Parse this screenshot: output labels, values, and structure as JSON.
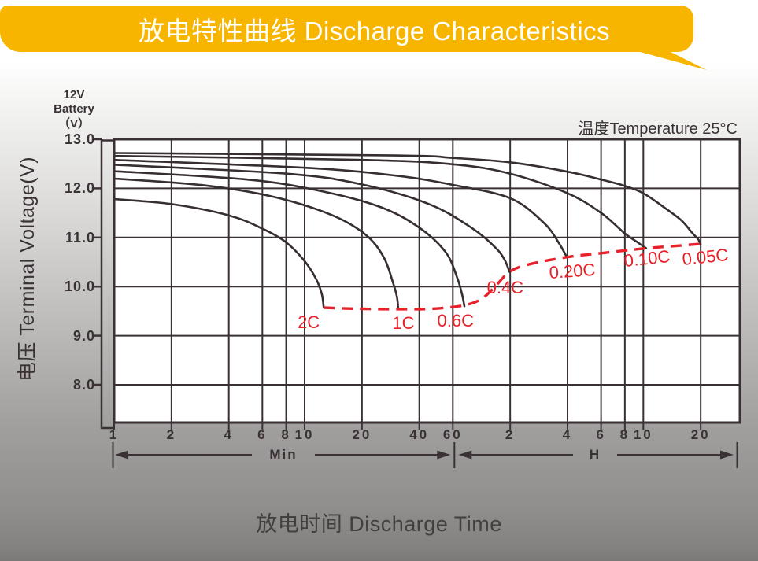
{
  "banner": {
    "title": "放电特性曲线 Discharge Characteristics"
  },
  "battery_label": {
    "line1": "12V",
    "line2": "Battery",
    "line3": "（V）"
  },
  "temperature_note": "温度Temperature 25°C",
  "colors": {
    "ink": "#3a3134",
    "curve": "#362e31",
    "red": "#e8202a",
    "yellow": "#f8b500",
    "banner_text": "#ffffff",
    "plot_bg": "#ffffff"
  },
  "chart_data": {
    "type": "line",
    "title": "放电特性曲线 Discharge Characteristics",
    "xlabel": "放电时间 Discharge Time",
    "ylabel": "电压 Terminal Voltage(V)",
    "x_scale": "log",
    "x_range_minutes": [
      1,
      1930
    ],
    "ylim": [
      8,
      13
    ],
    "grid": true,
    "y_ticks": [
      "13.0",
      "12.0",
      "11.0",
      "10.0",
      "9.0",
      "8.0"
    ],
    "x_unit_sections": [
      {
        "label": "Min",
        "unit_minutes": 1,
        "ticks": [
          1,
          2,
          4,
          6,
          8,
          10,
          20,
          40,
          60
        ]
      },
      {
        "label": "H",
        "unit_minutes": 60,
        "ticks": [
          2,
          4,
          6,
          8,
          10,
          20
        ]
      }
    ],
    "series": [
      {
        "label": "2C",
        "start_voltage": 11.78,
        "end_time_min": 12.6,
        "end_voltage": 9.57,
        "points": [
          [
            1,
            11.78
          ],
          [
            2,
            11.68
          ],
          [
            4,
            11.45
          ],
          [
            6,
            11.18
          ],
          [
            8,
            10.9
          ],
          [
            10,
            10.52
          ],
          [
            11.5,
            10.15
          ],
          [
            12.3,
            9.85
          ],
          [
            12.6,
            9.57
          ]
        ],
        "label_pos": [
          10.5,
          9.27
        ],
        "label_rotation": 0
      },
      {
        "label": "1C",
        "start_voltage": 12.2,
        "end_time_min": 31,
        "end_voltage": 9.55,
        "points": [
          [
            1,
            12.2
          ],
          [
            3,
            12.06
          ],
          [
            7,
            11.82
          ],
          [
            14,
            11.45
          ],
          [
            21,
            11.05
          ],
          [
            26,
            10.6
          ],
          [
            29,
            10.1
          ],
          [
            30.5,
            9.8
          ],
          [
            31,
            9.55
          ]
        ],
        "label_pos": [
          33,
          9.25
        ],
        "label_rotation": 0
      },
      {
        "label": "0.6C",
        "start_voltage": 12.35,
        "end_time_min": 69,
        "end_voltage": 9.6,
        "points": [
          [
            1,
            12.35
          ],
          [
            5,
            12.18
          ],
          [
            12,
            11.95
          ],
          [
            25,
            11.62
          ],
          [
            40,
            11.2
          ],
          [
            55,
            10.7
          ],
          [
            63,
            10.2
          ],
          [
            67,
            9.85
          ],
          [
            69,
            9.6
          ]
        ],
        "label_pos": [
          62,
          9.3
        ],
        "label_rotation": 0
      },
      {
        "label": "0.4C",
        "start_voltage": 12.48,
        "end_time_min": 119,
        "end_voltage": 10.3,
        "points": [
          [
            1,
            12.48
          ],
          [
            8,
            12.3
          ],
          [
            20,
            12.08
          ],
          [
            45,
            11.68
          ],
          [
            75,
            11.2
          ],
          [
            100,
            10.8
          ],
          [
            112,
            10.55
          ],
          [
            119,
            10.3
          ]
        ],
        "label_pos": [
          113,
          9.97
        ],
        "label_rotation": 0
      },
      {
        "label": "0.20C",
        "start_voltage": 12.58,
        "end_time_min": 238,
        "end_voltage": 10.6,
        "points": [
          [
            1,
            12.58
          ],
          [
            10,
            12.42
          ],
          [
            30,
            12.26
          ],
          [
            60,
            12.07
          ],
          [
            120,
            11.8
          ],
          [
            180,
            11.3
          ],
          [
            215,
            10.9
          ],
          [
            238,
            10.6
          ]
        ],
        "label_pos": [
          255,
          10.31
        ],
        "label_rotation": -4
      },
      {
        "label": "0.10C",
        "start_voltage": 12.66,
        "end_time_min": 620,
        "end_voltage": 10.78,
        "points": [
          [
            1,
            12.66
          ],
          [
            20,
            12.58
          ],
          [
            60,
            12.49
          ],
          [
            120,
            12.3
          ],
          [
            240,
            11.9
          ],
          [
            360,
            11.5
          ],
          [
            480,
            11.08
          ],
          [
            560,
            10.9
          ],
          [
            620,
            10.78
          ]
        ],
        "label_pos": [
          628,
          10.56
        ],
        "label_rotation": -6
      },
      {
        "label": "0.05C",
        "start_voltage": 12.72,
        "end_time_min": 1200,
        "end_voltage": 10.85,
        "points": [
          [
            1,
            12.72
          ],
          [
            30,
            12.67
          ],
          [
            60,
            12.62
          ],
          [
            120,
            12.53
          ],
          [
            240,
            12.34
          ],
          [
            360,
            12.18
          ],
          [
            480,
            12.05
          ],
          [
            600,
            11.9
          ],
          [
            780,
            11.6
          ],
          [
            950,
            11.35
          ],
          [
            1080,
            11.1
          ],
          [
            1170,
            10.95
          ],
          [
            1200,
            10.85
          ]
        ],
        "label_pos": [
          1268,
          10.6
        ],
        "label_rotation": -6
      }
    ],
    "envelope": {
      "name": "discharge-end-voltage-envelope",
      "style": "dashed",
      "points": [
        [
          12.6,
          9.57
        ],
        [
          18,
          9.55
        ],
        [
          31,
          9.54
        ],
        [
          48,
          9.55
        ],
        [
          69,
          9.62
        ],
        [
          85,
          9.75
        ],
        [
          100,
          10.0
        ],
        [
          119,
          10.3
        ],
        [
          150,
          10.45
        ],
        [
          238,
          10.6
        ],
        [
          360,
          10.68
        ],
        [
          620,
          10.78
        ],
        [
          900,
          10.83
        ],
        [
          1200,
          10.87
        ]
      ]
    },
    "legend_position": "on-curve-labels",
    "annotations": [
      "温度Temperature 25°C"
    ]
  }
}
